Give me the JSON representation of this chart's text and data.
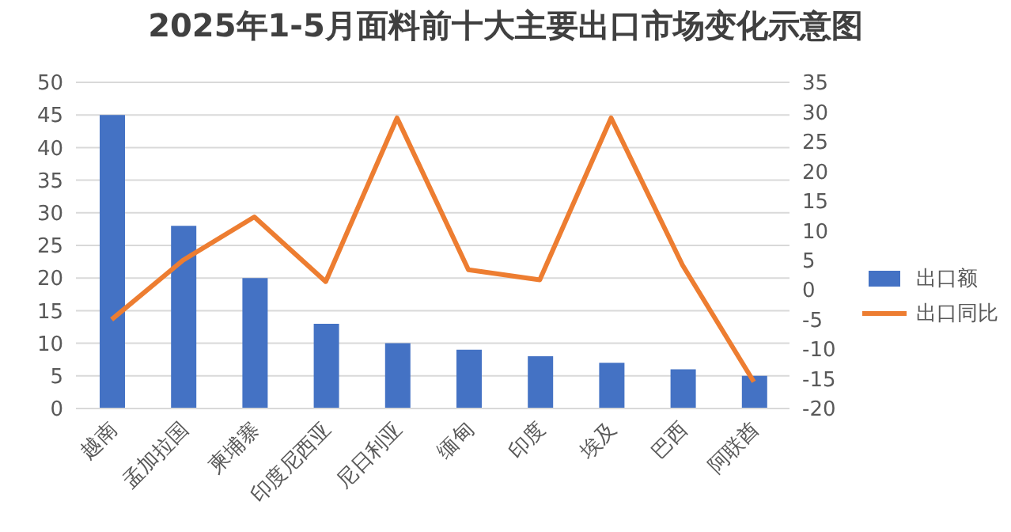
{
  "chart_data": {
    "type": "bar",
    "title": "2025年1-5月面料前十大主要出口市场变化示意图",
    "categories": [
      "越南",
      "孟加拉国",
      "柬埔寨",
      "印度尼西亚",
      "尼日利亚",
      "缅甸",
      "印度",
      "埃及",
      "巴西",
      "阿联酋"
    ],
    "series": [
      {
        "name": "出口额",
        "color": "#4472c4",
        "values": [
          45,
          28,
          20,
          13,
          10,
          9,
          8,
          7,
          6,
          5
        ]
      },
      {
        "name": "出口同比",
        "type": "line",
        "axis": "y2",
        "color": "#ed7d31",
        "values": [
          -5,
          5,
          12.3,
          1.4,
          29,
          3.4,
          1.7,
          29,
          4.2,
          -15.5
        ]
      }
    ],
    "ylim": [
      0,
      50
    ],
    "yticks": [
      0,
      5,
      10,
      15,
      20,
      25,
      30,
      35,
      40,
      45,
      50
    ],
    "y2lim": [
      -20,
      35
    ],
    "y2ticks": [
      -20,
      -15,
      -10,
      -5,
      0,
      5,
      10,
      15,
      20,
      25,
      30,
      35
    ],
    "grid": "y",
    "legend": "right",
    "marker": "none",
    "line_style": "solid"
  }
}
